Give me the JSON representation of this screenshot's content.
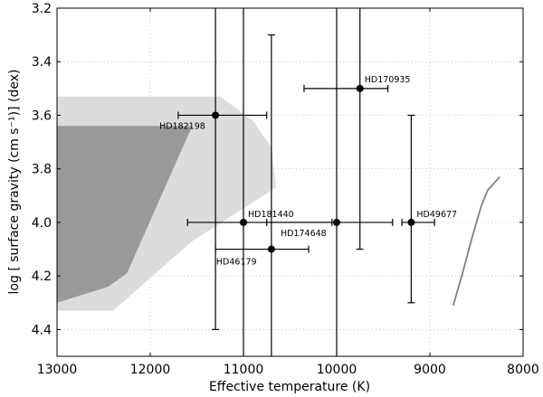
{
  "chart_data": {
    "type": "scatter",
    "xlabel": "Effective temperature (K)",
    "ylabel": "log [ surface gravity (cm s⁻¹)] (dex)",
    "xlim": [
      13000,
      8000
    ],
    "ylim": [
      4.5,
      3.2
    ],
    "x_inverted": true,
    "y_inverted": true,
    "grid": true,
    "xticks": [
      13000,
      12000,
      11000,
      10000,
      9000,
      8000
    ],
    "xtick_labels": [
      "13000",
      "12000",
      "11000",
      "10000",
      "9000",
      "8000"
    ],
    "yticks": [
      3.2,
      3.4,
      3.6,
      3.8,
      4.0,
      4.2,
      4.4
    ],
    "ytick_labels": [
      "3.2",
      "3.4",
      "3.6",
      "3.8",
      "4.0",
      "4.2",
      "4.4"
    ],
    "stars": [
      {
        "name": "HD170935",
        "teff": 9750,
        "logg": 3.5,
        "teff_low": 10350,
        "teff_high": 9450,
        "logg_low": 3.2,
        "logg_high": 4.1
      },
      {
        "name": "HD182198",
        "teff": 11300,
        "logg": 3.6,
        "teff_low": 11700,
        "teff_high": 10750,
        "logg_low": 3.2,
        "logg_high": 4.4
      },
      {
        "name": "HD181440",
        "teff": 11000,
        "logg": 4.0,
        "teff_low": 11600,
        "teff_high": 10050,
        "logg_low": 3.2,
        "logg_high": 4.5
      },
      {
        "name": "HD174648",
        "teff": 10000,
        "logg": 4.0,
        "teff_low": 10750,
        "teff_high": 9400,
        "logg_low": 3.2,
        "logg_high": 4.5
      },
      {
        "name": "HD49677",
        "teff": 9200,
        "logg": 4.0,
        "teff_low": 9300,
        "teff_high": 8950,
        "logg_low": 3.6,
        "logg_high": 4.3
      },
      {
        "name": "HD46179",
        "teff": 10700,
        "logg": 4.1,
        "teff_low": 11300,
        "teff_high": 10300,
        "logg_low": 3.3,
        "logg_high": 4.5
      }
    ],
    "regions": [
      {
        "fill": "#dcdcdc",
        "points": [
          [
            13000,
            3.53
          ],
          [
            11250,
            3.53
          ],
          [
            10900,
            3.62
          ],
          [
            10700,
            3.72
          ],
          [
            10650,
            3.87
          ],
          [
            11550,
            4.07
          ],
          [
            12400,
            4.33
          ],
          [
            13000,
            4.33
          ]
        ]
      },
      {
        "fill": "#999999",
        "points": [
          [
            13000,
            3.64
          ],
          [
            11550,
            3.64
          ],
          [
            12250,
            4.19
          ],
          [
            12450,
            4.24
          ],
          [
            13000,
            4.3
          ]
        ]
      }
    ],
    "track": {
      "color": "#808080",
      "points": [
        [
          8750,
          4.31
        ],
        [
          8650,
          4.19
        ],
        [
          8550,
          4.06
        ],
        [
          8450,
          3.94
        ],
        [
          8380,
          3.88
        ],
        [
          8250,
          3.83
        ]
      ]
    }
  }
}
